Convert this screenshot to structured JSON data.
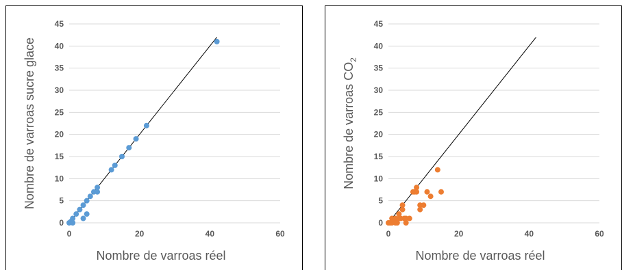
{
  "chart_data": [
    {
      "type": "scatter",
      "xlabel": "Nombre de varroas réel",
      "ylabel": "Nombre de varroas sucre glace",
      "xlim": [
        0,
        60
      ],
      "ylim": [
        0,
        45
      ],
      "xticks": [
        0,
        20,
        40,
        60
      ],
      "yticks": [
        0,
        5,
        10,
        15,
        20,
        25,
        30,
        35,
        40,
        45
      ],
      "grid": "horizontal",
      "reference_line": {
        "x": [
          0,
          42
        ],
        "y": [
          0,
          42
        ],
        "color": "#000000"
      },
      "series": [
        {
          "color": "#5b9bd5",
          "points": [
            [
              0,
              0
            ],
            [
              0.5,
              0.3
            ],
            [
              1,
              0
            ],
            [
              1,
              1
            ],
            [
              2,
              2
            ],
            [
              3,
              3
            ],
            [
              4,
              4
            ],
            [
              4,
              1
            ],
            [
              5,
              5
            ],
            [
              5,
              2
            ],
            [
              6,
              6
            ],
            [
              7,
              7
            ],
            [
              8,
              8
            ],
            [
              8,
              7
            ],
            [
              12,
              12
            ],
            [
              13,
              13
            ],
            [
              15,
              15
            ],
            [
              17,
              17
            ],
            [
              19,
              19
            ],
            [
              22,
              22
            ],
            [
              42,
              41
            ]
          ]
        }
      ]
    },
    {
      "type": "scatter",
      "xlabel": "Nombre de varroas réel",
      "ylabel": "Nombre de varroas CO",
      "ylabel_sub": "2",
      "xlim": [
        0,
        60
      ],
      "ylim": [
        0,
        45
      ],
      "xticks": [
        0,
        20,
        40,
        60
      ],
      "yticks": [
        0,
        5,
        10,
        15,
        20,
        25,
        30,
        35,
        40,
        45
      ],
      "grid": "horizontal",
      "reference_line": {
        "x": [
          0,
          42
        ],
        "y": [
          0,
          42
        ],
        "color": "#000000"
      },
      "series": [
        {
          "color": "#ed7d31",
          "points": [
            [
              0,
              0
            ],
            [
              0.5,
              0
            ],
            [
              1,
              0
            ],
            [
              1,
              1
            ],
            [
              1.5,
              0.5
            ],
            [
              2,
              0
            ],
            [
              2,
              1
            ],
            [
              2.5,
              0
            ],
            [
              3,
              1
            ],
            [
              3,
              2
            ],
            [
              3.5,
              1
            ],
            [
              4,
              4
            ],
            [
              4,
              3
            ],
            [
              4.5,
              1
            ],
            [
              5,
              0
            ],
            [
              5,
              1
            ],
            [
              6,
              1
            ],
            [
              7,
              7
            ],
            [
              7.5,
              7
            ],
            [
              8,
              8
            ],
            [
              8,
              7
            ],
            [
              9,
              4
            ],
            [
              9,
              3
            ],
            [
              10,
              4
            ],
            [
              11,
              7
            ],
            [
              12,
              6
            ],
            [
              14,
              12
            ],
            [
              15,
              7
            ]
          ]
        }
      ]
    }
  ]
}
